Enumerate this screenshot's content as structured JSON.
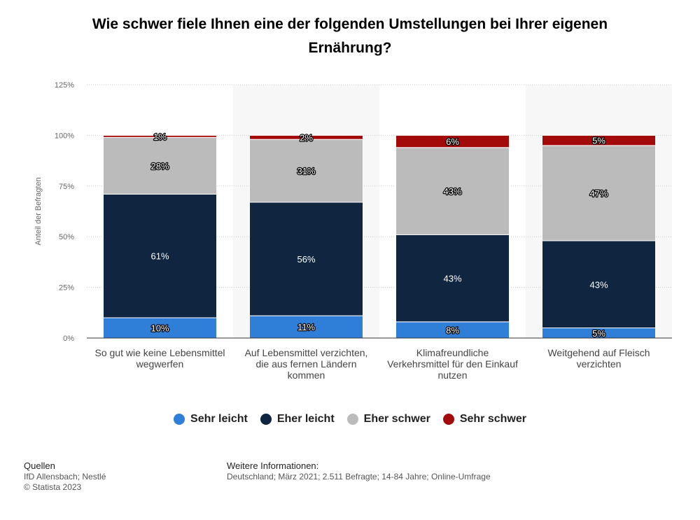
{
  "chart_data": {
    "type": "bar",
    "stacked": true,
    "title": "Wie schwer fiele Ihnen eine der folgenden Umstellungen bei Ihrer eigenen Ernährung?",
    "ylabel": "Anteil der Befragten",
    "xlabel": "",
    "ylim": [
      0,
      125
    ],
    "yticks": [
      0,
      25,
      50,
      75,
      100,
      125
    ],
    "ytick_labels": [
      "0%",
      "25%",
      "50%",
      "75%",
      "100%",
      "125%"
    ],
    "grid": true,
    "categories": [
      [
        "So gut wie keine Lebensmittel",
        "wegwerfen"
      ],
      [
        "Auf Lebensmittel verzichten,",
        "die aus fernen Ländern",
        "kommen"
      ],
      [
        "Klimafreundliche",
        "Verkehrsmittel für den Einkauf",
        "nutzen"
      ],
      [
        "Weitgehend auf Fleisch",
        "verzichten"
      ]
    ],
    "series": [
      {
        "name": "Sehr leicht",
        "color": "#2f7ed8",
        "values": [
          10,
          11,
          8,
          5
        ],
        "labels": [
          "10%",
          "11%",
          "8%",
          "5%"
        ]
      },
      {
        "name": "Eher leicht",
        "color": "#0f2540",
        "values": [
          61,
          56,
          43,
          43
        ],
        "labels": [
          "61%",
          "56%",
          "43%",
          "43%"
        ]
      },
      {
        "name": "Eher schwer",
        "color": "#bbbbbb",
        "values": [
          28,
          31,
          43,
          47
        ],
        "labels": [
          "28%",
          "31%",
          "43%",
          "47%"
        ]
      },
      {
        "name": "Sehr schwer",
        "color": "#a30a0a",
        "values": [
          1,
          2,
          6,
          5
        ],
        "labels": [
          "1%",
          "2%",
          "6%",
          "5%"
        ]
      }
    ],
    "legend_position": "bottom"
  },
  "legend": {
    "items": [
      "Sehr leicht",
      "Eher leicht",
      "Eher schwer",
      "Sehr schwer"
    ]
  },
  "footer": {
    "sources_heading": "Quellen",
    "sources_line1": "IfD Allensbach; Nestlé",
    "sources_line2": "© Statista 2023",
    "info_heading": "Weitere Informationen:",
    "info_text": "Deutschland; März 2021; 2.511 Befragte; 14-84 Jahre; Online-Umfrage"
  }
}
